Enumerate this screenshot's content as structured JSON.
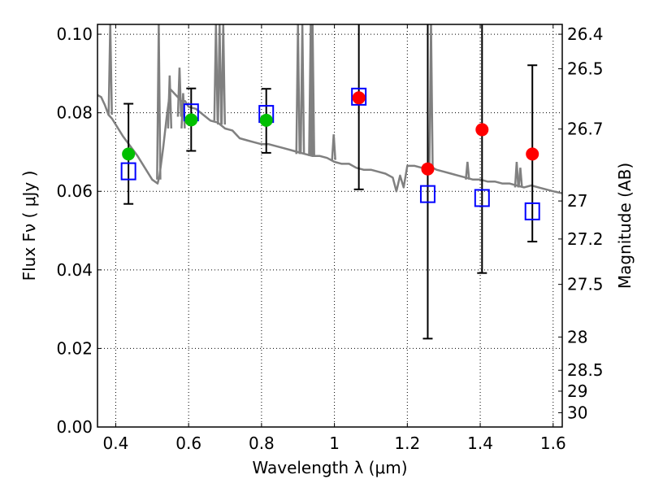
{
  "chart_data": {
    "type": "scatter",
    "title": "",
    "xlabel": "Wavelength  λ (μm)",
    "ylabel": "Flux  Fν  ( μJy )",
    "y2label": "Magnitude (AB)",
    "xlim": [
      0.35,
      1.625
    ],
    "ylim": [
      0.0,
      0.1025
    ],
    "grid": true,
    "x_ticks": [
      {
        "value": 0.4,
        "label": "0.4"
      },
      {
        "value": 0.6,
        "label": "0.6"
      },
      {
        "value": 0.8,
        "label": "0.8"
      },
      {
        "value": 1.0,
        "label": "1"
      },
      {
        "value": 1.2,
        "label": "1.2"
      },
      {
        "value": 1.4,
        "label": "1.4"
      },
      {
        "value": 1.6,
        "label": "1.6"
      }
    ],
    "y_ticks": [
      {
        "value": 0.0,
        "label": "0.00"
      },
      {
        "value": 0.02,
        "label": "0.02"
      },
      {
        "value": 0.04,
        "label": "0.04"
      },
      {
        "value": 0.06,
        "label": "0.06"
      },
      {
        "value": 0.08,
        "label": "0.08"
      },
      {
        "value": 0.1,
        "label": "0.10"
      }
    ],
    "y2_ticks": [
      {
        "mag": 26.4,
        "label": "26.4"
      },
      {
        "mag": 26.5,
        "label": "26.5"
      },
      {
        "mag": 26.7,
        "label": "26.7"
      },
      {
        "mag": 27,
        "label": "27"
      },
      {
        "mag": 27.2,
        "label": "27.2"
      },
      {
        "mag": 27.5,
        "label": "27.5"
      },
      {
        "mag": 28,
        "label": "28"
      },
      {
        "mag": 28.5,
        "label": "28.5"
      },
      {
        "mag": 29,
        "label": "29"
      },
      {
        "mag": 30,
        "label": "30"
      }
    ],
    "series": [
      {
        "name": "model-spectrum",
        "kind": "line",
        "color": "#808080",
        "x": [
          0.35,
          0.36,
          0.37,
          0.38,
          0.39,
          0.4,
          0.42,
          0.44,
          0.46,
          0.48,
          0.5,
          0.515,
          0.52,
          0.53,
          0.54,
          0.55,
          0.56,
          0.57,
          0.58,
          0.59,
          0.6,
          0.62,
          0.64,
          0.66,
          0.68,
          0.7,
          0.72,
          0.74,
          0.76,
          0.78,
          0.8,
          0.82,
          0.84,
          0.86,
          0.88,
          0.9,
          0.92,
          0.94,
          0.96,
          0.98,
          1.0,
          1.02,
          1.04,
          1.06,
          1.08,
          1.1,
          1.12,
          1.14,
          1.16,
          1.17,
          1.18,
          1.19,
          1.2,
          1.22,
          1.24,
          1.26,
          1.28,
          1.3,
          1.32,
          1.34,
          1.36,
          1.38,
          1.4,
          1.42,
          1.44,
          1.46,
          1.48,
          1.5,
          1.52,
          1.54,
          1.56,
          1.58,
          1.6,
          1.625
        ],
        "y": [
          0.0845,
          0.084,
          0.082,
          0.0795,
          0.0785,
          0.077,
          0.074,
          0.0715,
          0.069,
          0.066,
          0.063,
          0.062,
          0.064,
          0.071,
          0.079,
          0.086,
          0.085,
          0.084,
          0.083,
          0.083,
          0.0815,
          0.081,
          0.0795,
          0.078,
          0.0775,
          0.076,
          0.0755,
          0.0735,
          0.073,
          0.0725,
          0.072,
          0.072,
          0.0715,
          0.071,
          0.0705,
          0.07,
          0.0695,
          0.069,
          0.069,
          0.0685,
          0.0675,
          0.067,
          0.067,
          0.066,
          0.0655,
          0.0655,
          0.065,
          0.0645,
          0.0635,
          0.06,
          0.064,
          0.061,
          0.0665,
          0.0665,
          0.066,
          0.0665,
          0.0655,
          0.065,
          0.0645,
          0.064,
          0.0635,
          0.063,
          0.063,
          0.0625,
          0.0625,
          0.062,
          0.062,
          0.0615,
          0.061,
          0.0615,
          0.061,
          0.0605,
          0.06,
          0.0595
        ],
        "spikes": [
          {
            "x": 0.385,
            "top": 0.1025,
            "base": 0.0795
          },
          {
            "x": 0.518,
            "top": 0.1025,
            "base": 0.063
          },
          {
            "x": 0.548,
            "top": 0.0895,
            "base": 0.076
          },
          {
            "x": 0.575,
            "top": 0.0915,
            "base": 0.079
          },
          {
            "x": 0.585,
            "top": 0.085,
            "base": 0.076
          },
          {
            "x": 0.675,
            "top": 0.1025,
            "base": 0.078
          },
          {
            "x": 0.685,
            "top": 0.1025,
            "base": 0.077
          },
          {
            "x": 0.695,
            "top": 0.1025,
            "base": 0.077
          },
          {
            "x": 0.9,
            "top": 0.1025,
            "base": 0.0695
          },
          {
            "x": 0.912,
            "top": 0.1025,
            "base": 0.0695
          },
          {
            "x": 0.935,
            "top": 0.1025,
            "base": 0.069
          },
          {
            "x": 0.94,
            "top": 0.1025,
            "base": 0.069
          },
          {
            "x": 0.998,
            "top": 0.0745,
            "base": 0.068
          },
          {
            "x": 1.265,
            "top": 0.1025,
            "base": 0.066
          },
          {
            "x": 1.365,
            "top": 0.0675,
            "base": 0.063
          },
          {
            "x": 1.5,
            "top": 0.0675,
            "base": 0.061
          },
          {
            "x": 1.51,
            "top": 0.066,
            "base": 0.061
          }
        ]
      },
      {
        "name": "observed-green",
        "kind": "points",
        "marker": "circle",
        "color": "#00bf00",
        "x": [
          0.435,
          0.607,
          0.813
        ],
        "y": [
          0.0695,
          0.0782,
          0.0781
        ]
      },
      {
        "name": "observed-red",
        "kind": "points",
        "marker": "circle",
        "color": "#ff0000",
        "x": [
          1.067,
          1.256,
          1.405,
          1.543
        ],
        "y": [
          0.0838,
          0.0657,
          0.0757,
          0.0695
        ]
      },
      {
        "name": "model-bandpass",
        "kind": "points",
        "marker": "square-open",
        "color": "#0000ff",
        "x": [
          0.435,
          0.607,
          0.813,
          1.067,
          1.256,
          1.405,
          1.543
        ],
        "y": [
          0.0651,
          0.0801,
          0.0797,
          0.0841,
          0.0593,
          0.0583,
          0.0549
        ]
      },
      {
        "name": "error-bars",
        "kind": "errorbar",
        "color": "#000000",
        "x": [
          0.435,
          0.607,
          0.813,
          1.067,
          1.256,
          1.405,
          1.543
        ],
        "y_low": [
          0.0568,
          0.0703,
          0.0698,
          0.0605,
          0.0225,
          0.0392,
          0.0472
        ],
        "y_high": [
          0.0823,
          0.0862,
          0.0861,
          0.1025,
          0.1025,
          0.1025,
          0.0921
        ]
      }
    ]
  }
}
